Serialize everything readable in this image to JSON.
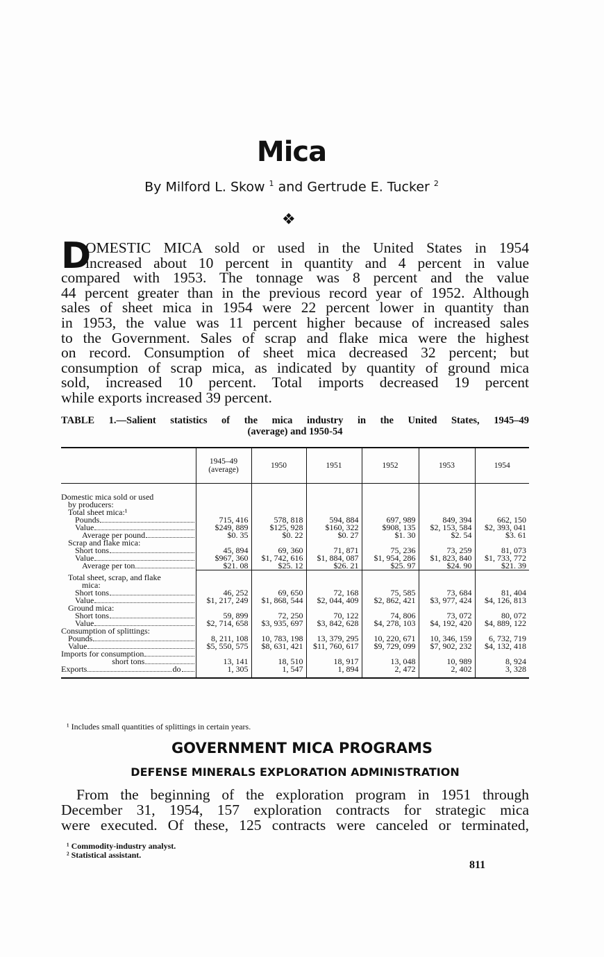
{
  "title": "Mica",
  "byline": {
    "author1": "By Milford L. Skow",
    "sup1": "1",
    "and": "and Gertrude E. Tucker",
    "sup2": "2"
  },
  "ornament": "❖",
  "intro": {
    "drop_cap": "D",
    "lines": [
      "OMESTIC MICA sold or used in the United States in 1954",
      "increased about 10 percent in quantity and 4 percent in value",
      "compared with 1953.  The tonnage was 8 percent and the value",
      "44 percent greater than in the previous record year of 1952.  Although",
      "sales of sheet mica in 1954 were 22 percent lower in quantity than",
      "in 1953, the value was 11 percent higher because of increased sales",
      "to the Government.  Sales of scrap and flake mica were the highest",
      "on record.  Consumption of sheet mica decreased 32 percent; but",
      "consumption of scrap mica, as indicated by quantity of ground mica",
      "sold, increased 10 percent.  Total imports decreased 19 percent",
      "while exports increased 39 percent."
    ]
  },
  "table": {
    "caption_line1": "TABLE 1.—Salient statistics of the mica industry in the United States, 1945–49",
    "caption_line2": "(average) and 1950-54",
    "columns": [
      "1945–49 (average)",
      "1950",
      "1951",
      "1952",
      "1953",
      "1954"
    ],
    "rows": [
      {
        "label": "Domestic mica sold or used",
        "indent": 0,
        "values": []
      },
      {
        "label": "by producers:",
        "indent": 2,
        "values": []
      },
      {
        "label": "Total sheet mica:¹",
        "indent": 1,
        "values": []
      },
      {
        "label": "Pounds",
        "indent": 2,
        "dots": true,
        "values": [
          "715, 416",
          "578, 818",
          "594, 884",
          "697, 989",
          "849, 394",
          "662, 150"
        ]
      },
      {
        "label": "Value",
        "indent": 2,
        "dots": true,
        "values": [
          "$249, 889",
          "$125, 928",
          "$160, 322",
          "$908, 135",
          "$2, 153, 584",
          "$2, 393, 041"
        ]
      },
      {
        "label": "Average per pound",
        "indent": 3,
        "dots": true,
        "values": [
          "$0. 35",
          "$0. 22",
          "$0. 27",
          "$1. 30",
          "$2. 54",
          "$3. 61"
        ]
      },
      {
        "label": "Scrap and flake mica:",
        "indent": 1,
        "values": []
      },
      {
        "label": "Short tons",
        "indent": 2,
        "dots": true,
        "values": [
          "45, 894",
          "69, 360",
          "71, 871",
          "75, 236",
          "73, 259",
          "81, 073"
        ]
      },
      {
        "label": "Value",
        "indent": 2,
        "dots": true,
        "values": [
          "$967, 360",
          "$1, 742, 616",
          "$1, 884, 087",
          "$1, 954, 286",
          "$1, 823, 840",
          "$1, 733, 772"
        ]
      },
      {
        "label": "Average per ton",
        "indent": 3,
        "dots": true,
        "rule": true,
        "values": [
          "$21. 08",
          "$25. 12",
          "$26. 21",
          "$25. 97",
          "$24. 90",
          "$21. 39"
        ]
      },
      {
        "label": "Total sheet, scrap, and flake",
        "indent": 1,
        "values": []
      },
      {
        "label": "mica:",
        "indent": 3,
        "values": []
      },
      {
        "label": "Short tons",
        "indent": 2,
        "dots": true,
        "values": [
          "46, 252",
          "69, 650",
          "72, 168",
          "75, 585",
          "73, 684",
          "81, 404"
        ]
      },
      {
        "label": "Value",
        "indent": 2,
        "dots": true,
        "values": [
          "$1, 217, 249",
          "$1, 868, 544",
          "$2, 044, 409",
          "$2, 862, 421",
          "$3, 977, 424",
          "$4, 126, 813"
        ]
      },
      {
        "label": "Ground mica:",
        "indent": 1,
        "values": []
      },
      {
        "label": "Short tons",
        "indent": 2,
        "dots": true,
        "values": [
          "59, 899",
          "72, 250",
          "70, 122",
          "74, 806",
          "73, 072",
          "80, 072"
        ]
      },
      {
        "label": "Value",
        "indent": 2,
        "dots": true,
        "values": [
          "$2, 714, 658",
          "$3, 935, 697",
          "$3, 842, 628",
          "$4, 278, 103",
          "$4, 192, 420",
          "$4, 889, 122"
        ]
      },
      {
        "label": "Consumption of splittings:",
        "indent": 0,
        "values": []
      },
      {
        "label": "Pounds",
        "indent": 1,
        "dots": true,
        "values": [
          "8, 211, 108",
          "10, 783, 198",
          "13, 379, 295",
          "10, 220, 671",
          "10, 346, 159",
          "6, 732, 719"
        ]
      },
      {
        "label": "Value",
        "indent": 1,
        "dots": true,
        "values": [
          "$5, 550, 575",
          "$8, 631, 421",
          "$11, 760, 617",
          "$9, 729, 099",
          "$7, 902, 232",
          "$4, 132, 418"
        ]
      },
      {
        "label": "Imports for consumption",
        "indent": 0,
        "dots": true,
        "values": []
      },
      {
        "label": "short tons",
        "indent": 4,
        "dots": true,
        "values": [
          "13, 141",
          "18, 510",
          "18, 917",
          "13, 048",
          "10, 989",
          "8, 924"
        ]
      },
      {
        "label": "Exports",
        "indent": 0,
        "dots": true,
        "suffix": "do",
        "values": [
          "1, 305",
          "1, 547",
          "1, 894",
          "2, 472",
          "2, 402",
          "3, 328"
        ]
      }
    ],
    "footnote": "¹ Includes small quantities of splittings in certain years."
  },
  "section_heading": "GOVERNMENT MICA PROGRAMS",
  "subsection_heading": "DEFENSE MINERALS EXPLORATION ADMINISTRATION",
  "body_lines": [
    "From the beginning of the exploration program in 1951 through",
    "December 31, 1954, 157 exploration contracts for strategic mica",
    "were executed.  Of these, 125 contracts were canceled or terminated,"
  ],
  "footnotes": [
    "¹ Commodity-industry analyst.",
    "² Statistical assistant."
  ],
  "page_number": "811"
}
